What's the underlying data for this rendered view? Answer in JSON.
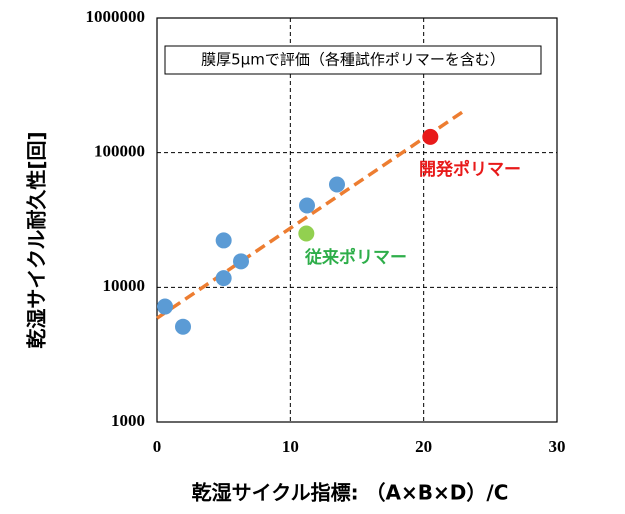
{
  "chart_data": {
    "type": "scatter",
    "y_label": "乾湿サイクル耐久性[回]",
    "x_label": "乾湿サイクル指標: （A×B×D）/C",
    "xlim": [
      0,
      30
    ],
    "xticks": [
      0,
      10,
      20,
      30
    ],
    "ylim": [
      1000,
      1000000
    ],
    "yticks": [
      1000,
      10000,
      100000,
      1000000
    ],
    "y_scale": "log",
    "grid": true,
    "note": "膜厚5μmで評価（各種試作ポリマーを含む）",
    "series": [
      {
        "type": "line",
        "color": "#ed7d31",
        "x": [
          0,
          22.9
        ],
        "values": [
          5900,
          200000
        ]
      },
      {
        "type": "scatter",
        "color": "#5b9bd5",
        "x": [
          0.6,
          1.95,
          5.0,
          5.0,
          6.3,
          11.25,
          13.5
        ],
        "values": [
          7200,
          5100,
          22300,
          11700,
          15600,
          40500,
          58000
        ]
      },
      {
        "type": "scatter",
        "color": "#92d050",
        "x": [
          11.2
        ],
        "values": [
          25100
        ]
      },
      {
        "type": "scatter",
        "color": "#e81a1a",
        "x": [
          20.5
        ],
        "values": [
          131000
        ]
      }
    ],
    "annotations": [
      {
        "text": "開発ポリマー",
        "color": "#e81a1a"
      },
      {
        "text": "従来ポリマー",
        "color": "#2eae4a"
      }
    ]
  }
}
